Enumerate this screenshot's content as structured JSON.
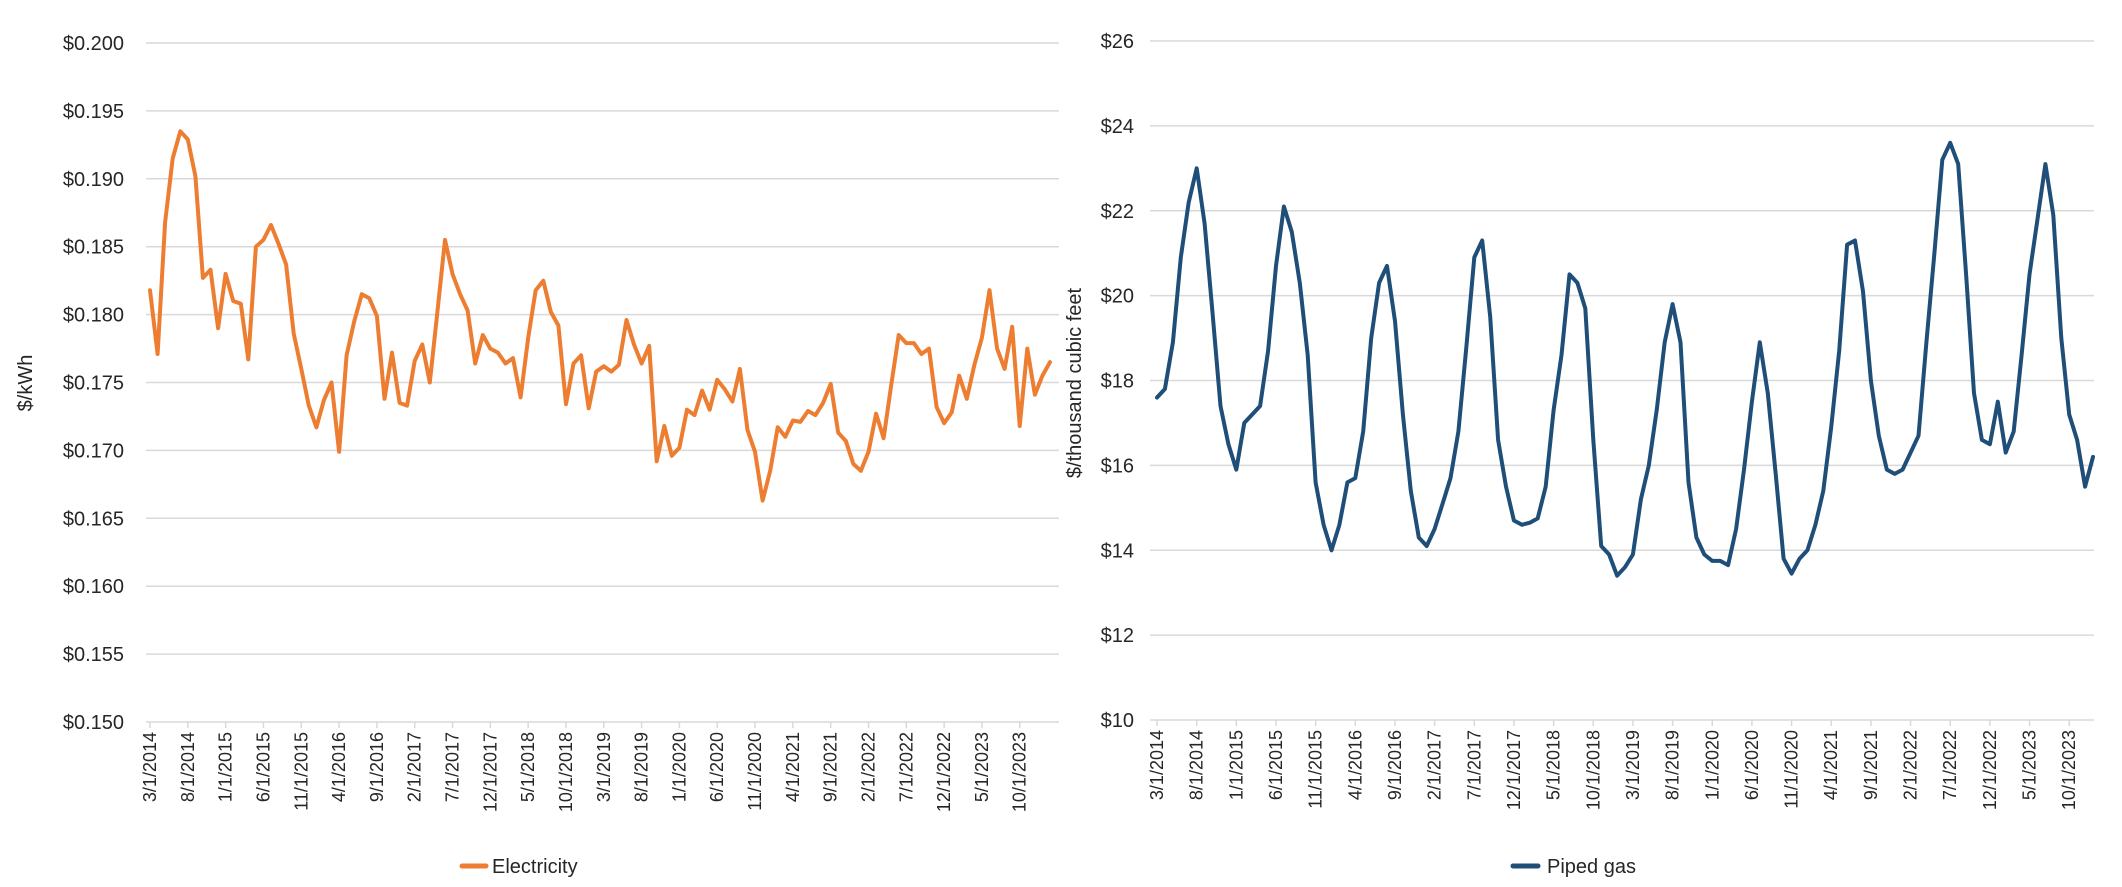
{
  "chart_data": [
    {
      "type": "line",
      "title": "",
      "xlabel": "",
      "ylabel": "$/kWh",
      "ylim": [
        0.15,
        0.2
      ],
      "y_ticks": [
        "$0.150",
        "$0.155",
        "$0.160",
        "$0.165",
        "$0.170",
        "$0.175",
        "$0.180",
        "$0.185",
        "$0.190",
        "$0.195",
        "$0.200"
      ],
      "x_tick_labels": [
        "3/1/2014",
        "8/1/2014",
        "1/1/2015",
        "6/1/2015",
        "11/1/2015",
        "4/1/2016",
        "9/1/2016",
        "2/1/2017",
        "7/1/2017",
        "12/1/2017",
        "5/1/2018",
        "10/1/2018",
        "3/1/2019",
        "8/1/2019",
        "1/1/2020",
        "6/1/2020",
        "11/1/2020",
        "4/1/2021",
        "9/1/2021",
        "2/1/2022",
        "7/1/2022",
        "12/1/2022",
        "5/1/2023",
        "10/1/2023"
      ],
      "x_start": "3/1/2014",
      "x_interval": "monthly",
      "grid": true,
      "legend_position": "bottom",
      "color": "#ED7D31",
      "series": [
        {
          "name": "Electricity",
          "values": [
            0.1818,
            0.1771,
            0.1868,
            0.1915,
            0.1935,
            0.1929,
            0.1902,
            0.1827,
            0.1833,
            0.179,
            0.183,
            0.181,
            0.1808,
            0.1767,
            0.185,
            0.1855,
            0.1866,
            0.1852,
            0.1837,
            0.1786,
            0.176,
            0.1733,
            0.1717,
            0.1737,
            0.175,
            0.1699,
            0.177,
            0.1795,
            0.1815,
            0.1812,
            0.1799,
            0.1738,
            0.1772,
            0.1735,
            0.1733,
            0.1766,
            0.1778,
            0.175,
            0.1802,
            0.1855,
            0.183,
            0.1815,
            0.1803,
            0.1764,
            0.1785,
            0.1775,
            0.1772,
            0.1764,
            0.1768,
            0.1739,
            0.1783,
            0.1818,
            0.1825,
            0.1802,
            0.1792,
            0.1734,
            0.1764,
            0.177,
            0.1731,
            0.1758,
            0.1762,
            0.1758,
            0.1763,
            0.1796,
            0.1778,
            0.1764,
            0.1777,
            0.1692,
            0.1718,
            0.1696,
            0.1702,
            0.173,
            0.1726,
            0.1744,
            0.173,
            0.1752,
            0.1745,
            0.1736,
            0.176,
            0.1715,
            0.1699,
            0.1663,
            0.1685,
            0.1717,
            0.171,
            0.1722,
            0.1721,
            0.1729,
            0.1726,
            0.1735,
            0.1749,
            0.1713,
            0.1707,
            0.169,
            0.1685,
            0.1699,
            0.1727,
            0.1709,
            0.1748,
            0.1785,
            0.1779,
            0.1779,
            0.1771,
            0.1775,
            0.1732,
            0.172,
            0.1728,
            0.1755,
            0.1738,
            0.1763,
            0.1783,
            0.1818,
            0.1775,
            0.176,
            0.1791,
            0.1718,
            0.1775,
            0.1741,
            0.1755,
            0.1765
          ]
        }
      ]
    },
    {
      "type": "line",
      "title": "",
      "xlabel": "",
      "ylabel": "$/thousand cubic feet",
      "ylim": [
        10,
        26
      ],
      "y_ticks": [
        "$10",
        "$12",
        "$14",
        "$16",
        "$18",
        "$20",
        "$22",
        "$24",
        "$26"
      ],
      "x_tick_labels": [
        "3/1/2014",
        "8/1/2014",
        "1/1/2015",
        "6/1/2015",
        "11/1/2015",
        "4/1/2016",
        "9/1/2016",
        "2/1/2017",
        "7/1/2017",
        "12/1/2017",
        "5/1/2018",
        "10/1/2018",
        "3/1/2019",
        "8/1/2019",
        "1/1/2020",
        "6/1/2020",
        "11/1/2020",
        "4/1/2021",
        "9/1/2021",
        "2/1/2022",
        "7/1/2022",
        "12/1/2022",
        "5/1/2023",
        "10/1/2023"
      ],
      "x_start": "3/1/2014",
      "x_interval": "monthly",
      "grid": true,
      "legend_position": "bottom",
      "color": "#1F4E79",
      "series": [
        {
          "name": "Piped gas",
          "values": [
            17.6,
            17.8,
            18.9,
            20.9,
            22.2,
            23.0,
            21.7,
            19.6,
            17.4,
            16.5,
            15.9,
            17.0,
            17.2,
            17.4,
            18.7,
            20.7,
            22.1,
            21.5,
            20.3,
            18.6,
            15.6,
            14.6,
            14.0,
            14.6,
            15.6,
            15.7,
            16.8,
            19.0,
            20.3,
            20.7,
            19.4,
            17.2,
            15.4,
            14.3,
            14.1,
            14.5,
            15.1,
            15.7,
            16.8,
            18.8,
            20.9,
            21.3,
            19.5,
            16.6,
            15.5,
            14.7,
            14.6,
            14.65,
            14.75,
            15.5,
            17.3,
            18.6,
            20.5,
            20.3,
            19.7,
            16.6,
            14.1,
            13.9,
            13.4,
            13.6,
            13.9,
            15.2,
            16.0,
            17.3,
            18.9,
            19.8,
            18.9,
            15.6,
            14.3,
            13.9,
            13.75,
            13.75,
            13.65,
            14.5,
            15.9,
            17.5,
            18.9,
            17.7,
            15.8,
            13.8,
            13.45,
            13.8,
            14.0,
            14.6,
            15.4,
            16.9,
            18.7,
            21.2,
            21.3,
            20.1,
            18.0,
            16.7,
            15.9,
            15.8,
            15.9,
            16.3,
            16.7,
            18.9,
            21.0,
            23.2,
            23.6,
            23.1,
            20.5,
            17.7,
            16.6,
            16.5,
            17.5,
            16.3,
            16.8,
            18.6,
            20.5,
            21.8,
            23.1,
            21.9,
            19.0,
            17.2,
            16.6,
            15.5,
            16.2
          ]
        }
      ]
    }
  ]
}
